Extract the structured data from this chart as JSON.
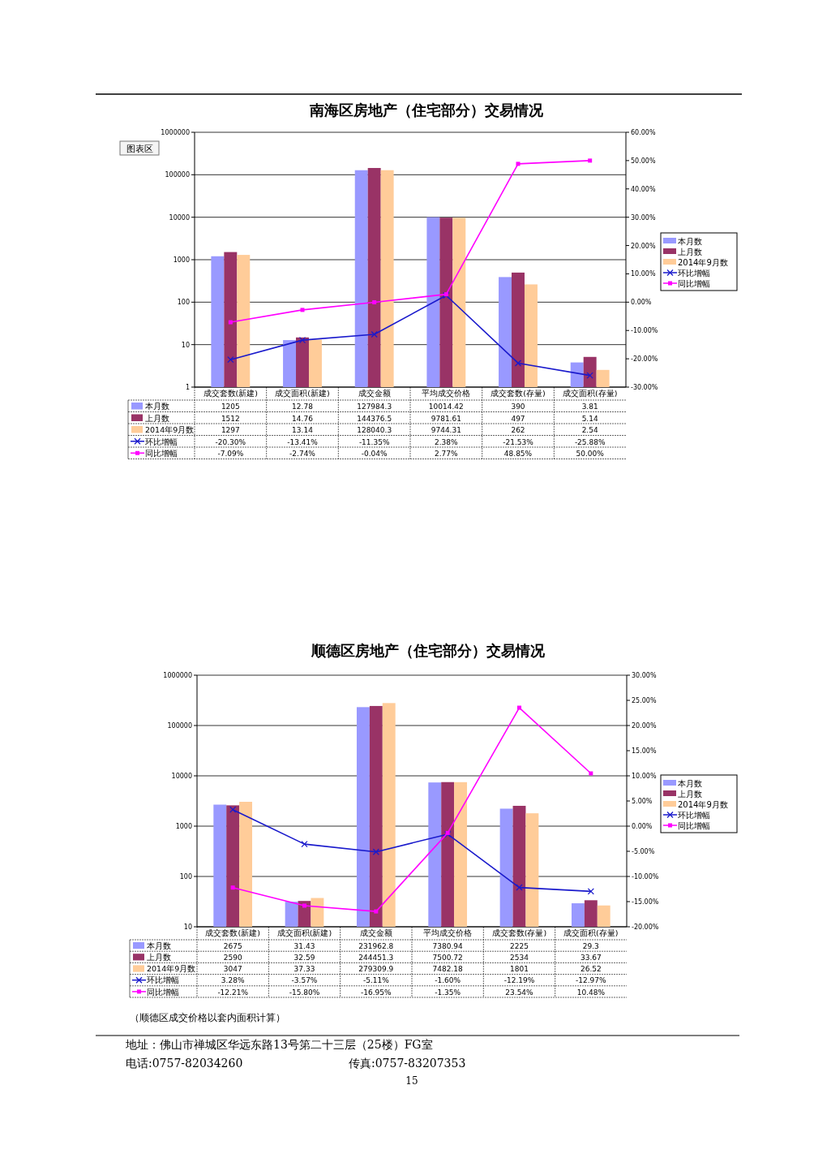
{
  "chart_data": [
    {
      "type": "bar",
      "title": "南海区房地产（住宅部分）交易情况",
      "categories": [
        "成交套数(新建)",
        "成交面积(新建)",
        "成交金额",
        "平均成交价格",
        "成交套数(存量)",
        "成交面积(存量)"
      ],
      "log": "y",
      "ylim": [
        1,
        1000000
      ],
      "yticks": [
        1,
        10,
        100,
        1000,
        10000,
        100000,
        1000000
      ],
      "y2lim": [
        -30,
        60
      ],
      "y2ticks": [
        {
          "value": -30,
          "label": "-30.00%"
        },
        {
          "value": -20,
          "label": "-20.00%"
        },
        {
          "value": -10,
          "label": "-10.00%"
        },
        {
          "value": 0,
          "label": "0.00%"
        },
        {
          "value": 10,
          "label": "10.00%"
        },
        {
          "value": 20,
          "label": "20.00%"
        },
        {
          "value": 30,
          "label": "30.00%"
        },
        {
          "value": 40,
          "label": "40.00%"
        },
        {
          "value": 50,
          "label": "50.00%"
        },
        {
          "value": 60,
          "label": "60.00%"
        }
      ],
      "grid": "y",
      "legend": "right",
      "annotations": [
        "图表区"
      ],
      "series": [
        {
          "name": "本月数",
          "type": "bar",
          "color": "#9999ff",
          "values": [
            1205,
            12.78,
            127984.3,
            10014.42,
            390,
            3.81
          ],
          "value_labels": [
            "1205",
            "12.78",
            "127984.3",
            "10014.42",
            "390",
            "3.81"
          ]
        },
        {
          "name": "上月数",
          "type": "bar",
          "color": "#993366",
          "values": [
            1512,
            14.76,
            144376.5,
            9781.61,
            497,
            5.14
          ],
          "value_labels": [
            "1512",
            "14.76",
            "144376.5",
            "9781.61",
            "497",
            "5.14"
          ]
        },
        {
          "name": "2014年9月数",
          "type": "bar",
          "color": "#ffcc99",
          "values": [
            1297,
            13.14,
            128040.3,
            9744.31,
            262,
            2.54
          ],
          "value_labels": [
            "1297",
            "13.14",
            "128040.3",
            "9744.31",
            "262",
            "2.54"
          ]
        },
        {
          "name": "环比增幅",
          "type": "line",
          "axis": "y2",
          "marker": "cross",
          "color": "#1a1acc",
          "values": [
            -20.3,
            -13.41,
            -11.35,
            2.38,
            -21.53,
            -25.88
          ],
          "value_labels": [
            "-20.30%",
            "-13.41%",
            "-11.35%",
            "2.38%",
            "-21.53%",
            "-25.88%"
          ]
        },
        {
          "name": "同比增幅",
          "type": "line",
          "axis": "y2",
          "marker": "square",
          "color": "#ff00ff",
          "values": [
            -7.09,
            -2.74,
            -0.04,
            2.77,
            48.85,
            50.0
          ],
          "value_labels": [
            "-7.09%",
            "-2.74%",
            "-0.04%",
            "2.77%",
            "48.85%",
            "50.00%"
          ]
        }
      ]
    },
    {
      "type": "bar",
      "title": "顺德区房地产（住宅部分）交易情况",
      "categories": [
        "成交套数(新建)",
        "成交面积(新建)",
        "成交金额",
        "平均成交价格",
        "成交套数(存量)",
        "成交面积(存量)"
      ],
      "log": "y",
      "ylim": [
        10,
        1000000
      ],
      "yticks": [
        10,
        100,
        1000,
        10000,
        100000,
        1000000
      ],
      "y2lim": [
        -20,
        30
      ],
      "y2ticks": [
        {
          "value": -20,
          "label": "-20.00%"
        },
        {
          "value": -15,
          "label": "-15.00%"
        },
        {
          "value": -10,
          "label": "-10.00%"
        },
        {
          "value": -5,
          "label": "-5.00%"
        },
        {
          "value": 0,
          "label": "0.00%"
        },
        {
          "value": 5,
          "label": "5.00%"
        },
        {
          "value": 10,
          "label": "10.00%"
        },
        {
          "value": 15,
          "label": "15.00%"
        },
        {
          "value": 20,
          "label": "20.00%"
        },
        {
          "value": 25,
          "label": "25.00%"
        },
        {
          "value": 30,
          "label": "30.00%"
        }
      ],
      "grid": "y",
      "legend": "right",
      "annotations": [
        "（顺德区成交价格以套内面积计算）",
        "地址：佛山市禅城区华远东路13号第二十三层（25楼）FG室",
        "电话:0757-82034260",
        "传真:0757-83207353",
        "15"
      ],
      "series": [
        {
          "name": "本月数",
          "type": "bar",
          "color": "#9999ff",
          "values": [
            2675,
            31.43,
            231962.8,
            7380.94,
            2225,
            29.3
          ],
          "value_labels": [
            "2675",
            "31.43",
            "231962.8",
            "7380.94",
            "2225",
            "29.3"
          ]
        },
        {
          "name": "上月数",
          "type": "bar",
          "color": "#993366",
          "values": [
            2590,
            32.59,
            244451.3,
            7500.72,
            2534,
            33.67
          ],
          "value_labels": [
            "2590",
            "32.59",
            "244451.3",
            "7500.72",
            "2534",
            "33.67"
          ]
        },
        {
          "name": "2014年9月数",
          "type": "bar",
          "color": "#ffcc99",
          "values": [
            3047,
            37.33,
            279309.9,
            7482.18,
            1801,
            26.52
          ],
          "value_labels": [
            "3047",
            "37.33",
            "279309.9",
            "7482.18",
            "1801",
            "26.52"
          ]
        },
        {
          "name": "环比增幅",
          "type": "line",
          "axis": "y2",
          "marker": "cross",
          "color": "#1a1acc",
          "values": [
            3.28,
            -3.57,
            -5.11,
            -1.6,
            -12.19,
            -12.97
          ],
          "value_labels": [
            "3.28%",
            "-3.57%",
            "-5.11%",
            "-1.60%",
            "-12.19%",
            "-12.97%"
          ]
        },
        {
          "name": "同比增幅",
          "type": "line",
          "axis": "y2",
          "marker": "square",
          "color": "#ff00ff",
          "values": [
            -12.21,
            -15.8,
            -16.95,
            -1.35,
            23.54,
            10.48
          ],
          "value_labels": [
            "-12.21%",
            "-15.80%",
            "-16.95%",
            "-1.35%",
            "23.54%",
            "10.48%"
          ]
        }
      ]
    }
  ]
}
